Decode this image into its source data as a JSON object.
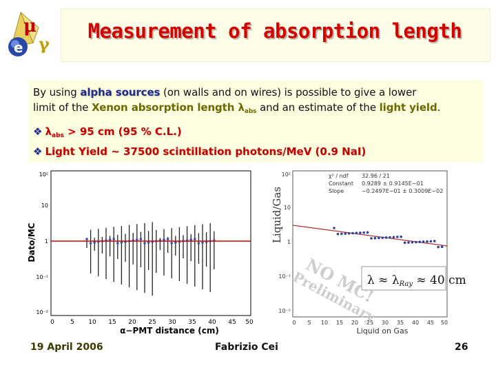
{
  "title": "Measurement of absorption length",
  "logo": {
    "letters": "μeγ"
  },
  "paragraph": {
    "part1": "By using ",
    "alpha": "alpha sources",
    "part2": " (on walls and on wires) is possible to give a lower",
    "line2a": "limit of the ",
    "xenon": "Xenon absorption length λ",
    "abs_sub": "abs",
    "line2b": " and an estimate of the ",
    "yield": "light yield",
    "line2c": "."
  },
  "bullets": [
    {
      "pre": "λ",
      "sub": "abs",
      "text": " > 95 cm (95 % C.L.)"
    },
    {
      "pre": "",
      "sub": "",
      "text": "Light Yield ~ 37500 scintillation photons/MeV (0.9 NaI)"
    }
  ],
  "plot_left": {
    "ylabel": "Dato/MC",
    "xlabel": "α−PMT distance (cm)",
    "yticks": [
      "10²",
      "10",
      "1",
      "10⁻¹",
      "10⁻²"
    ],
    "xticks": [
      "0",
      "5",
      "10",
      "15",
      "20",
      "25",
      "30",
      "35",
      "40",
      "45",
      "50"
    ]
  },
  "plot_right": {
    "ylabel": "Liquid/Gas",
    "xlabel": "Liquid on Gas",
    "stats": [
      {
        "k": "χ² / ndf",
        "v": "32.96    /    21"
      },
      {
        "k": "Constant",
        "v": "0.9289 ±  0.9145E−01"
      },
      {
        "k": "Slope",
        "v": "−0.2497E−01 ±  0.3009E−02"
      }
    ],
    "yticks": [
      "10²",
      "10",
      "1",
      "10⁻¹",
      "10⁻²"
    ],
    "xticks": [
      "0",
      "5",
      "10",
      "15",
      "20",
      "25",
      "30",
      "35",
      "40",
      "45",
      "50"
    ],
    "formula": "λ ≈ λ",
    "formula_sub": "Ray",
    "formula_tail": " ≈ 40 cm",
    "watermark1": "NO MC!",
    "watermark2": "Preliminary"
  },
  "footer": {
    "date": "19 April 2006",
    "author": "Fabrizio Cei",
    "page": "26"
  },
  "colors": {
    "title": "#d40000",
    "accent": "#1f2a8c",
    "panel": "#fdfde0"
  }
}
